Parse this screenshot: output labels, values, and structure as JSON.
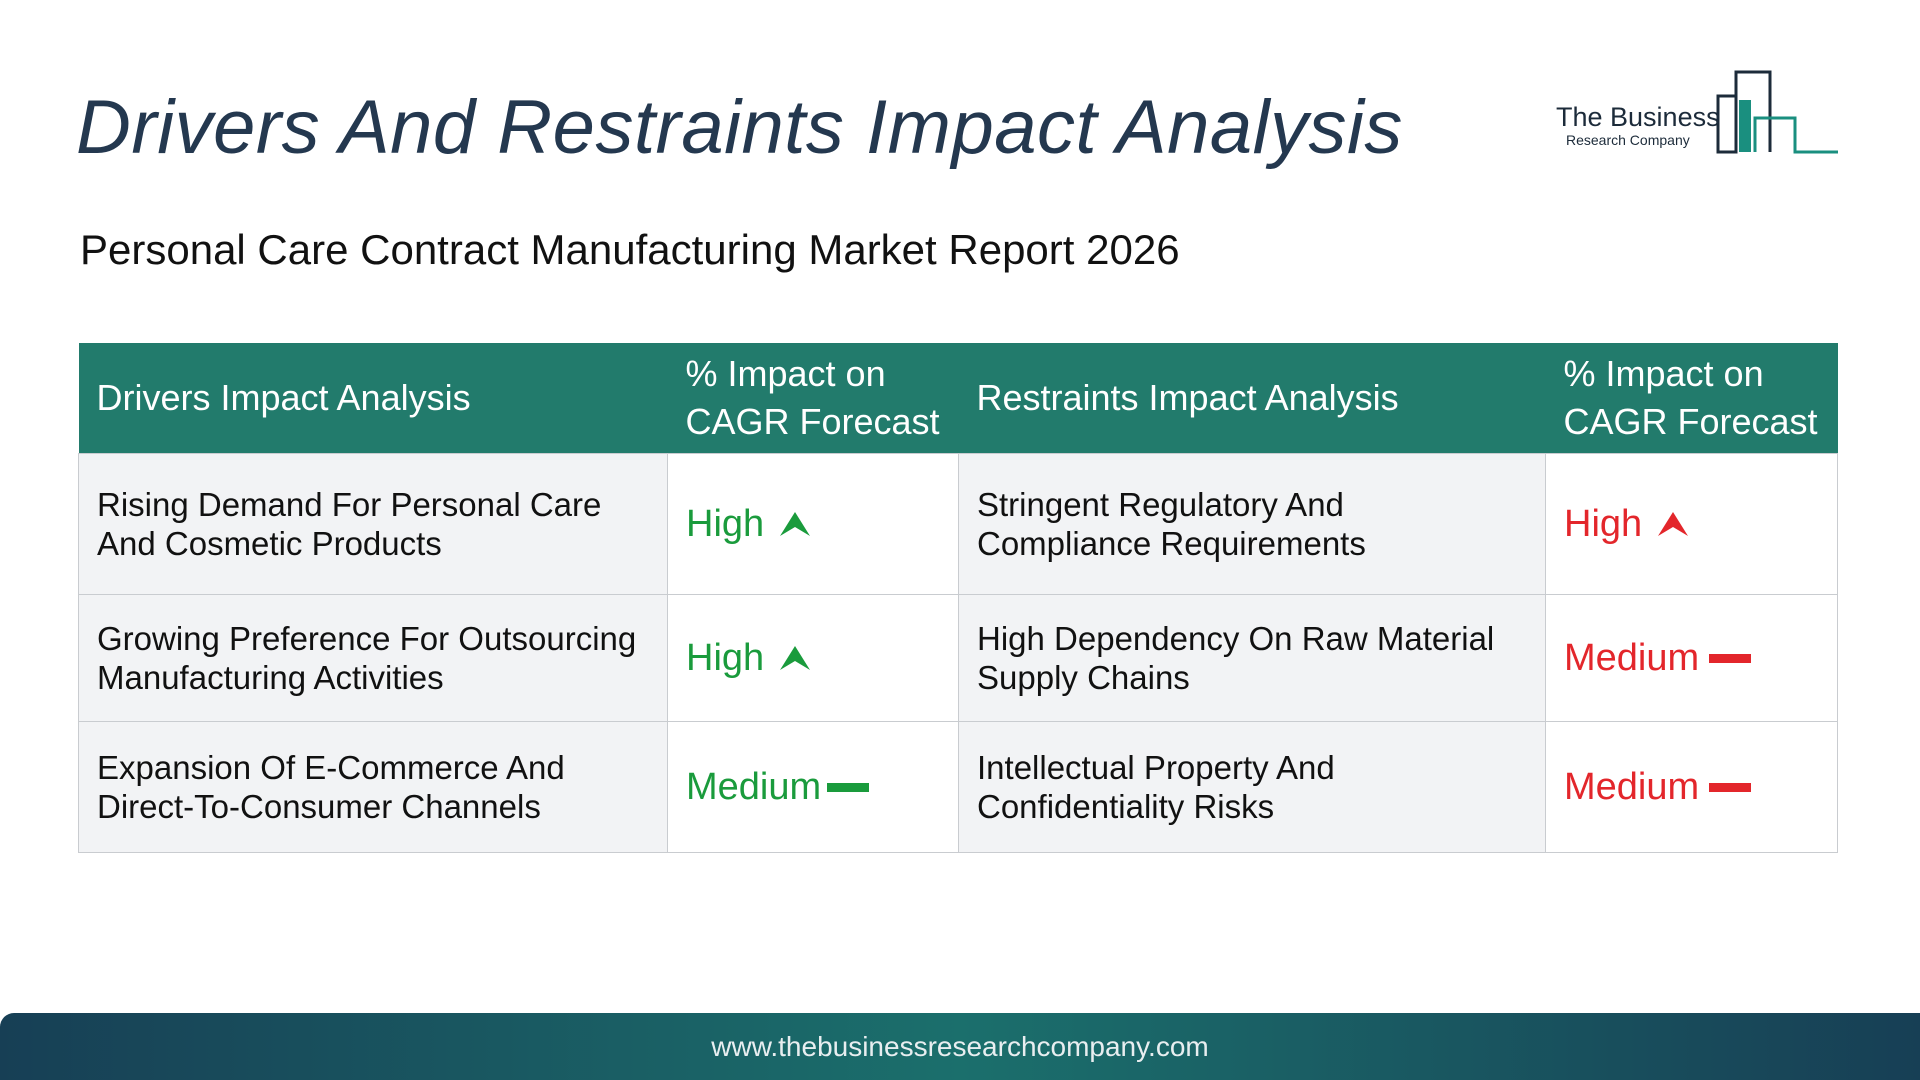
{
  "header": {
    "title": "Drivers And Restraints Impact Analysis",
    "subtitle": "Personal Care Contract Manufacturing Market Report 2026"
  },
  "logo": {
    "line1": "The Business",
    "line2": "Research Company",
    "colors": {
      "dark": "#1c2b3a",
      "teal": "#1a8f7f"
    }
  },
  "table": {
    "columns": [
      "Drivers Impact Analysis",
      "% Impact on CAGR Forecast",
      "Restraints Impact Analysis",
      "% Impact on CAGR Forecast"
    ],
    "rows": [
      {
        "driver": "Rising Demand For Personal Care And Cosmetic Products",
        "driver_impact": "High",
        "driver_icon": "arrow-up-icon",
        "restraint": "Stringent Regulatory And Compliance Requirements",
        "restraint_impact": "High",
        "restraint_icon": "arrow-up-icon"
      },
      {
        "driver": "Growing Preference For Outsourcing Manufacturing Activities",
        "driver_impact": "High",
        "driver_icon": "arrow-up-icon",
        "restraint": "High Dependency On Raw Material Supply Chains",
        "restraint_impact": "Medium",
        "restraint_icon": "dash-icon"
      },
      {
        "driver": "Expansion Of E-Commerce And Direct-To-Consumer Channels",
        "driver_impact": "Medium",
        "driver_icon": "dash-icon",
        "restraint": "Intellectual Property And Confidentiality Risks",
        "restraint_impact": "Medium",
        "restraint_icon": "dash-icon"
      }
    ]
  },
  "colors": {
    "header_bg": "#227b6c",
    "driver_impact": "#1a9b3c",
    "restraint_impact": "#e3262b",
    "title": "#24384f"
  },
  "footer": {
    "url": "www.thebusinessresearchcompany.com"
  }
}
